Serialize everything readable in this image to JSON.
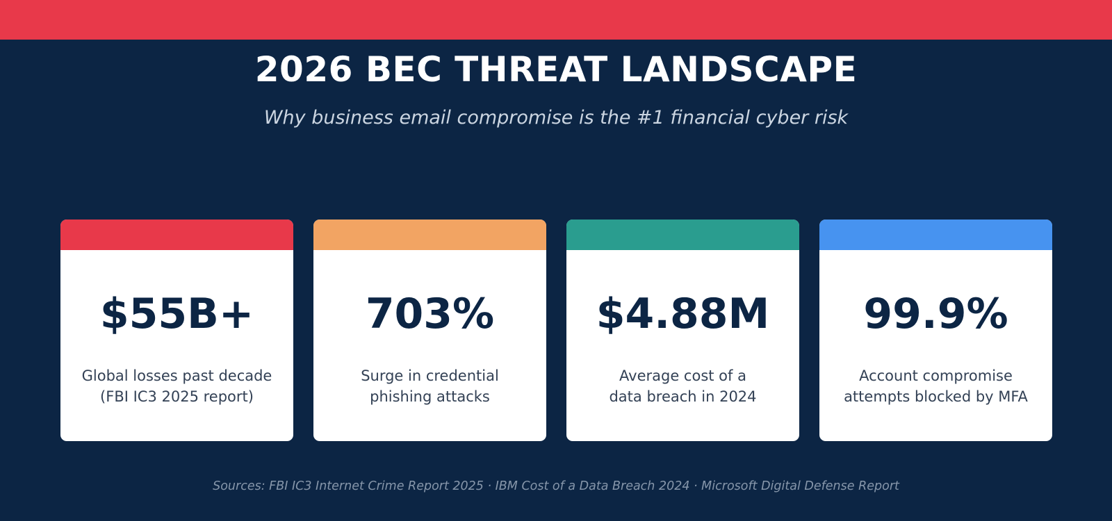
{
  "colors": {
    "background": "#0c2544",
    "top_bar": "#e8394a",
    "card_background": "#ffffff",
    "stat_text": "#0c2544"
  },
  "header": {
    "title": "2026 BEC THREAT LANDSCAPE",
    "subtitle": "Why business email compromise is the #1 financial cyber risk"
  },
  "cards": [
    {
      "value": "$55B+",
      "description_line1": "Global losses past decade",
      "description_line2": "(FBI IC3 2025 report)",
      "accent_color": "#e8394a"
    },
    {
      "value": "703%",
      "description_line1": "Surge in credential",
      "description_line2": "phishing attacks",
      "accent_color": "#f2a463"
    },
    {
      "value": "$4.88M",
      "description_line1": "Average cost of a",
      "description_line2": "data breach in 2024",
      "accent_color": "#2a9d8f"
    },
    {
      "value": "99.9%",
      "description_line1": "Account compromise",
      "description_line2": "attempts blocked by MFA",
      "accent_color": "#4793f0"
    }
  ],
  "footer": {
    "sources": "Sources: FBI IC3 Internet Crime Report 2025 · IBM Cost of a Data Breach 2024 · Microsoft Digital Defense Report"
  }
}
